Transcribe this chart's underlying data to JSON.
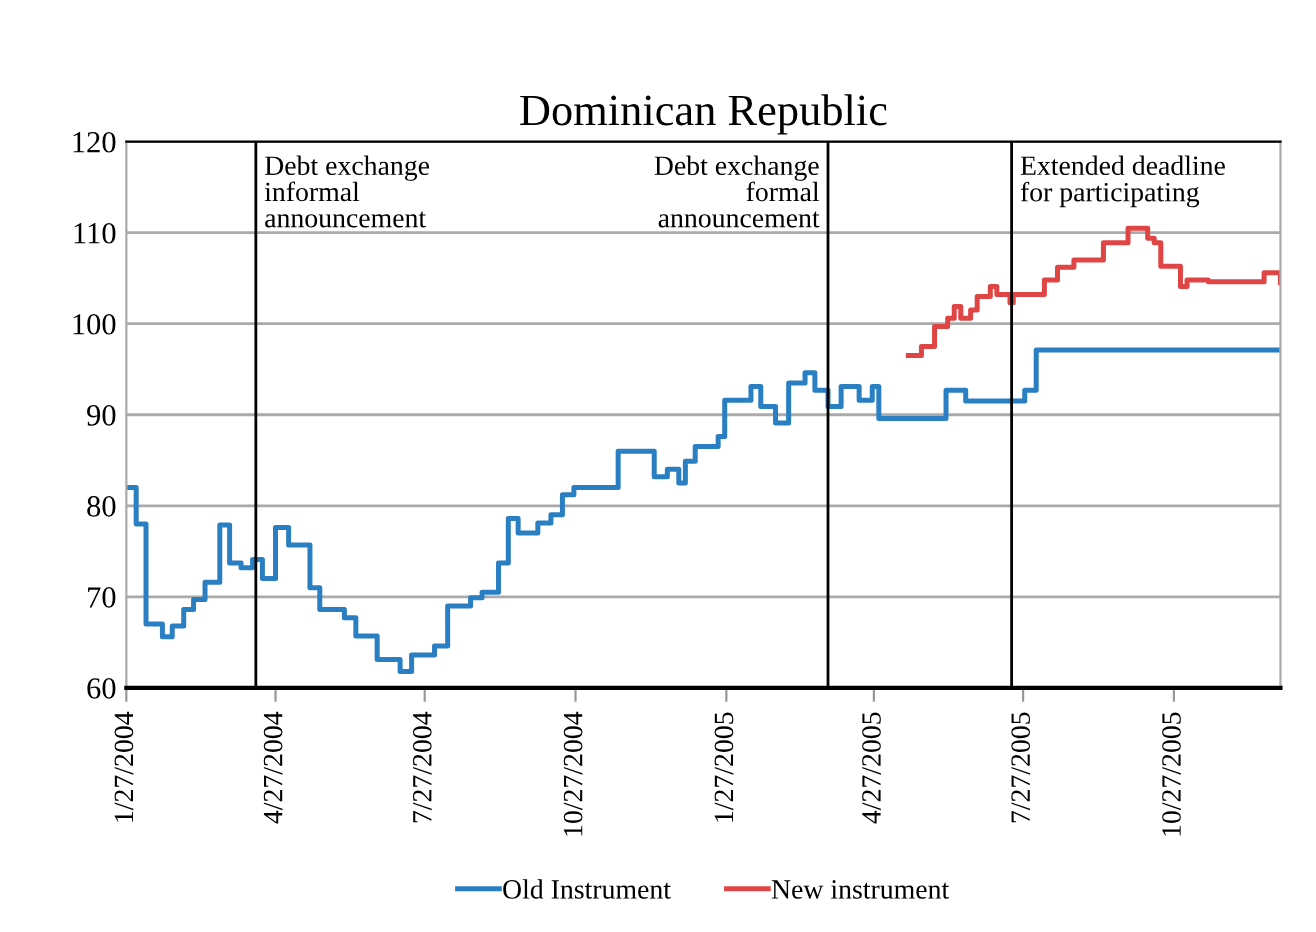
{
  "chart_data": {
    "type": "step",
    "title": "Dominican Republic",
    "series": [
      {
        "name": "Old Instrument",
        "color": "#2a7fc2",
        "x": [
          "2004-01-27",
          "2004-02-02",
          "2004-02-08",
          "2004-02-18",
          "2004-02-24",
          "2004-03-02",
          "2004-03-08",
          "2004-03-15",
          "2004-03-24",
          "2004-03-30",
          "2004-04-06",
          "2004-04-13",
          "2004-04-19",
          "2004-04-27",
          "2004-05-05",
          "2004-05-18",
          "2004-05-24",
          "2004-06-08",
          "2004-06-15",
          "2004-06-28",
          "2004-07-12",
          "2004-07-19",
          "2004-08-02",
          "2004-08-10",
          "2004-08-24",
          "2004-08-31",
          "2004-09-10",
          "2004-09-16",
          "2004-09-22",
          "2004-10-04",
          "2004-10-12",
          "2004-10-19",
          "2004-10-26",
          "2004-11-22",
          "2004-12-14",
          "2004-12-22",
          "2004-12-29",
          "2005-01-02",
          "2005-01-08",
          "2005-01-22",
          "2005-01-26",
          "2005-02-11",
          "2005-02-17",
          "2005-02-26",
          "2005-03-06",
          "2005-03-16",
          "2005-03-22",
          "2005-03-30",
          "2005-04-07",
          "2005-04-18",
          "2005-04-26",
          "2005-04-30",
          "2005-06-10",
          "2005-06-22",
          "2005-07-28",
          "2005-08-04",
          "2005-12-31"
        ],
        "values": [
          82,
          78,
          67,
          65.6,
          66.8,
          68.6,
          69.7,
          71.6,
          77.9,
          73.7,
          73.2,
          74.1,
          72,
          77.6,
          75.7,
          71,
          68.6,
          67.7,
          65.7,
          63.1,
          61.8,
          63.6,
          64.6,
          69,
          69.9,
          70.5,
          73.7,
          78.6,
          77,
          78.1,
          79,
          81.2,
          82,
          86,
          83.2,
          84,
          82.5,
          84.9,
          86.5,
          87.6,
          91.6,
          93.1,
          90.9,
          89.1,
          93.5,
          94.6,
          92.7,
          90.9,
          93.1,
          91.6,
          93.1,
          89.6,
          92.7,
          91.5,
          92.7,
          97.1,
          97.1
        ]
      },
      {
        "name": "New instrument",
        "color": "#e04545",
        "x": [
          "2005-05-18",
          "2005-05-26",
          "2005-06-03",
          "2005-06-11",
          "2005-06-15",
          "2005-06-19",
          "2005-06-25",
          "2005-06-29",
          "2005-07-07",
          "2005-07-11",
          "2005-07-19",
          "2005-07-21",
          "2005-08-09",
          "2005-08-17",
          "2005-08-27",
          "2005-09-14",
          "2005-09-25",
          "2005-09-29",
          "2005-10-11",
          "2005-10-15",
          "2005-10-19",
          "2005-10-25",
          "2005-10-31",
          "2005-11-04",
          "2005-11-17",
          "2005-12-21",
          "2005-12-27",
          "2005-12-31"
        ],
        "values": [
          96.5,
          97.5,
          99.7,
          100.6,
          101.9,
          100.6,
          101.5,
          103,
          104.1,
          103.2,
          102.3,
          103.2,
          104.8,
          106.2,
          107,
          108.9,
          108.9,
          110.5,
          109.4,
          108.9,
          106.3,
          106.3,
          104.1,
          104.8,
          104.6,
          105.6,
          105.6,
          104.5
        ]
      }
    ],
    "xlim": [
      "2004-01-27",
      "2005-12-31"
    ],
    "xticks": [
      {
        "value": "2004-01-27",
        "label": "1/27/2004"
      },
      {
        "value": "2004-04-27",
        "label": "4/27/2004"
      },
      {
        "value": "2004-07-27",
        "label": "7/27/2004"
      },
      {
        "value": "2004-10-27",
        "label": "10/27/2004"
      },
      {
        "value": "2005-01-27",
        "label": "1/27/2005"
      },
      {
        "value": "2005-04-27",
        "label": "4/27/2005"
      },
      {
        "value": "2005-07-27",
        "label": "7/27/2005"
      },
      {
        "value": "2005-10-27",
        "label": "10/27/2005"
      }
    ],
    "ylim": [
      60,
      120
    ],
    "yticks": [
      60,
      70,
      80,
      90,
      100,
      110,
      120
    ],
    "ref_lines": [
      {
        "axis": "x",
        "value": "2004-04-15",
        "label": "Debt exchange\ninformal\nannouncement",
        "color": "#000000"
      },
      {
        "axis": "x",
        "value": "2005-03-30",
        "label": "Debt exchange\nformal\nannouncement",
        "color": "#000000"
      },
      {
        "axis": "x",
        "value": "2005-07-20",
        "label": "Extended deadline\nfor participating",
        "color": "#000000"
      }
    ],
    "grid": "y",
    "legend": "bottom"
  }
}
